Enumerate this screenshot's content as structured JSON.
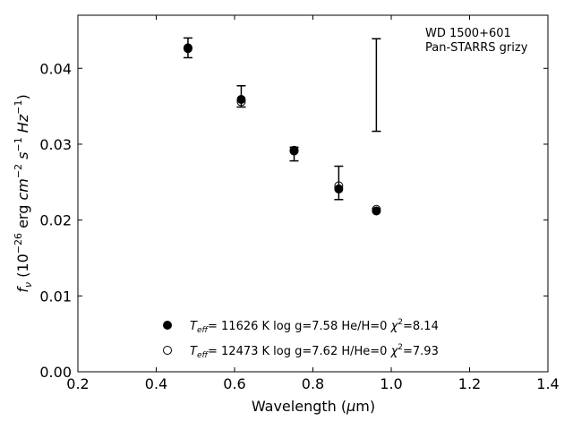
{
  "chart_data": {
    "type": "scatter",
    "annotation": [
      "WD 1500+601",
      "Pan-STARRS grizy"
    ],
    "xlabel": {
      "base": "Wavelength (",
      "mu": "μ",
      "rest": "m)"
    },
    "ylabel": {
      "f": "f",
      "nu": "ν",
      "p1": " (10",
      "e1": "−26",
      "p2": " erg ",
      "cm": "cm",
      "e2": "−2",
      "s": " s",
      "e3": "−1",
      "hz": " Hz",
      "e4": "−1",
      "p3": ")"
    },
    "xlim": [
      0.2,
      1.4
    ],
    "ylim": [
      0.0,
      0.047
    ],
    "xticks": [
      "0.2",
      "0.4",
      "0.6",
      "0.8",
      "1.0",
      "1.2",
      "1.4"
    ],
    "yticks": [
      "0.00",
      "0.01",
      "0.02",
      "0.03",
      "0.04"
    ],
    "observed": {
      "x": [
        0.481,
        0.617,
        0.752,
        0.866,
        0.962
      ],
      "y": [
        0.0427,
        0.0363,
        0.0287,
        0.0249,
        0.0378
      ],
      "yerr": [
        0.0013,
        0.0014,
        0.0009,
        0.0022,
        0.0061
      ]
    },
    "series": [
      {
        "marker": "filled",
        "x": [
          0.481,
          0.617,
          0.752,
          0.866,
          0.962
        ],
        "y": [
          0.0427,
          0.0359,
          0.0292,
          0.0241,
          0.0212
        ],
        "legend": {
          "t": "T",
          "sub": "eff",
          "rest": "= 11626 K  log g=7.58  He/H=0  ",
          "chi": "χ",
          "sup": "2",
          "val": "=8.14"
        }
      },
      {
        "marker": "open",
        "x": [
          0.481,
          0.617,
          0.752,
          0.866,
          0.962
        ],
        "y": [
          0.0426,
          0.0356,
          0.0291,
          0.0245,
          0.0214
        ],
        "legend": {
          "t": "T",
          "sub": "eff",
          "rest": "= 12473 K  log g=7.62  H/He=0  ",
          "chi": "χ",
          "sup": "2",
          "val": "=7.93"
        }
      }
    ],
    "grid": false,
    "legend_position": "bottom-center",
    "colors": {
      "marker": "#000000",
      "axes": "#000000",
      "background": "#ffffff"
    }
  }
}
